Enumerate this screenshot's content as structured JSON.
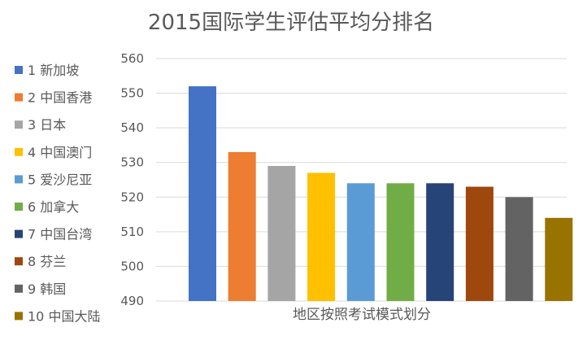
{
  "chart_data": {
    "type": "bar",
    "title": "2015国际学生评估平均分排名",
    "xlabel": "地区按照考试模式划分",
    "ylabel": "",
    "ylim": [
      490,
      560
    ],
    "yticks": [
      490,
      500,
      510,
      520,
      530,
      540,
      550,
      560
    ],
    "grid": true,
    "legend_position": "left",
    "series": [
      {
        "name": "1 新加坡",
        "value": 552,
        "color": "#4472C4"
      },
      {
        "name": "2 中国香港",
        "value": 533,
        "color": "#ED7D31"
      },
      {
        "name": "3 日本",
        "value": 529,
        "color": "#A5A5A5"
      },
      {
        "name": "4 中国澳门",
        "value": 527,
        "color": "#FFC000"
      },
      {
        "name": "5 爱沙尼亚",
        "value": 524,
        "color": "#5B9BD5"
      },
      {
        "name": "6 加拿大",
        "value": 524,
        "color": "#70AD47"
      },
      {
        "name": "7 中国台湾",
        "value": 524,
        "color": "#264478"
      },
      {
        "name": "8 芬兰",
        "value": 523,
        "color": "#9E480E"
      },
      {
        "name": "9 韩国",
        "value": 520,
        "color": "#636363"
      },
      {
        "name": "10 中国大陆",
        "value": 514,
        "color": "#997300"
      }
    ]
  }
}
